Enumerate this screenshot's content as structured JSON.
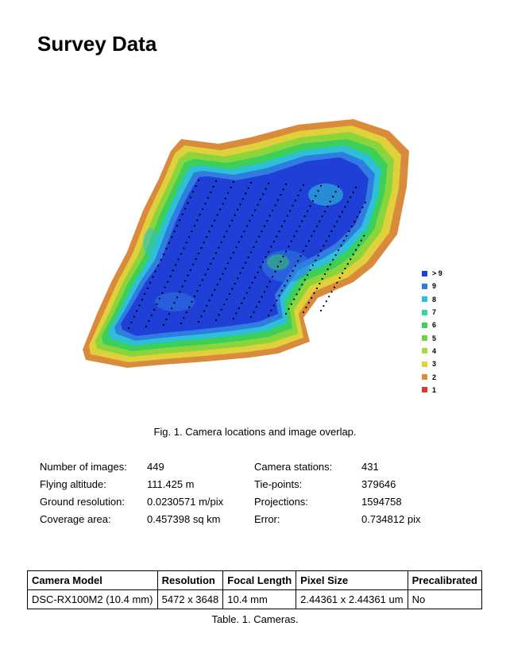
{
  "title": "Survey Data",
  "figure": {
    "caption": "Fig. 1. Camera locations and image overlap.",
    "legend": [
      {
        "label": "> 9",
        "color": "#1f3fd6"
      },
      {
        "label": "9",
        "color": "#2f7de0"
      },
      {
        "label": "8",
        "color": "#2ebfd9"
      },
      {
        "label": "7",
        "color": "#33d6a8"
      },
      {
        "label": "6",
        "color": "#3ccf5a"
      },
      {
        "label": "5",
        "color": "#6ed23e"
      },
      {
        "label": "4",
        "color": "#a8d83a"
      },
      {
        "label": "3",
        "color": "#e0d03c"
      },
      {
        "label": "2",
        "color": "#d98a3a"
      },
      {
        "label": "1",
        "color": "#d9362e"
      }
    ]
  },
  "stats": {
    "left": [
      {
        "label": "Number of images:",
        "value": "449"
      },
      {
        "label": "Flying altitude:",
        "value": "111.425 m"
      },
      {
        "label": "Ground resolution:",
        "value": "0.0230571 m/pix"
      },
      {
        "label": "Coverage area:",
        "value": "0.457398 sq km"
      }
    ],
    "right": [
      {
        "label": "Camera stations:",
        "value": "431"
      },
      {
        "label": "Tie-points:",
        "value": "379646"
      },
      {
        "label": "Projections:",
        "value": "1594758"
      },
      {
        "label": "Error:",
        "value": "0.734812 pix"
      }
    ]
  },
  "camera_table": {
    "headers": [
      "Camera Model",
      "Resolution",
      "Focal Length",
      "Pixel Size",
      "Precalibrated"
    ],
    "rows": [
      [
        "DSC-RX100M2 (10.4 mm)",
        "5472 x 3648",
        "10.4 mm",
        "2.44361 x 2.44361 um",
        "No"
      ]
    ],
    "caption": "Table. 1. Cameras."
  }
}
